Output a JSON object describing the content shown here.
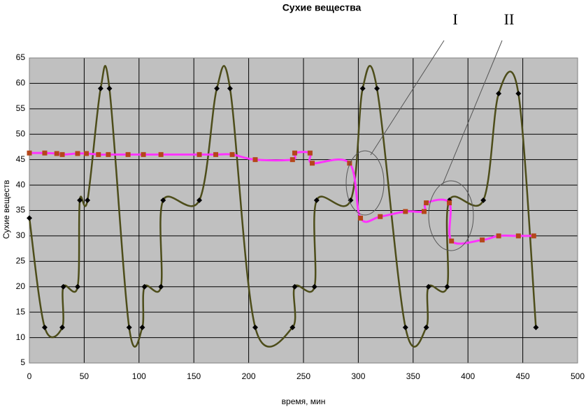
{
  "chart_data": {
    "type": "line",
    "title": "Сухие вещества",
    "x_label": "время, мин",
    "y_label": "Сухие веществ",
    "annotations": [
      "I",
      "II"
    ],
    "xlim": [
      0,
      500
    ],
    "xticks": [
      0,
      50,
      100,
      150,
      200,
      250,
      300,
      350,
      400,
      450,
      500
    ],
    "ylim": [
      5,
      65
    ],
    "yticks": [
      5,
      10,
      15,
      20,
      25,
      30,
      35,
      40,
      45,
      50,
      55,
      60,
      65
    ],
    "grid": true,
    "series": [
      {
        "color": "#4d4d1a",
        "marker_color": "#000000",
        "marker": "diamond",
        "x": [
          0,
          14,
          30,
          31,
          44,
          46,
          53,
          65,
          73,
          91,
          103,
          105,
          120,
          122,
          155,
          171,
          183,
          206,
          240,
          242,
          260,
          262,
          293,
          304,
          317,
          343,
          362,
          364,
          381,
          383,
          414,
          428,
          446,
          462
        ],
        "values": [
          33.5,
          12,
          12,
          20,
          20,
          37,
          37,
          59,
          59,
          12,
          12,
          20,
          20,
          37,
          37,
          59,
          59,
          12,
          12,
          20,
          20,
          37,
          37,
          59,
          59,
          12,
          12,
          20,
          20,
          37,
          37,
          58,
          58,
          12
        ]
      },
      {
        "color": "#ff33ff",
        "marker_color": "#b5461a",
        "marker": "square",
        "x": [
          0,
          14,
          25,
          30,
          44,
          52,
          63,
          72,
          90,
          104,
          120,
          155,
          170,
          185,
          206,
          240,
          242,
          256,
          258,
          292,
          302,
          320,
          343,
          360,
          362,
          383,
          385,
          413,
          428,
          446,
          460
        ],
        "values": [
          46.3,
          46.3,
          46.2,
          46,
          46.2,
          46.2,
          46,
          46,
          46,
          46,
          46,
          46,
          46,
          46,
          45,
          45,
          46.3,
          46.3,
          44.3,
          44.3,
          33.5,
          33.8,
          34.8,
          34.8,
          36.5,
          36.5,
          29,
          29.2,
          30,
          30,
          30
        ]
      }
    ]
  }
}
